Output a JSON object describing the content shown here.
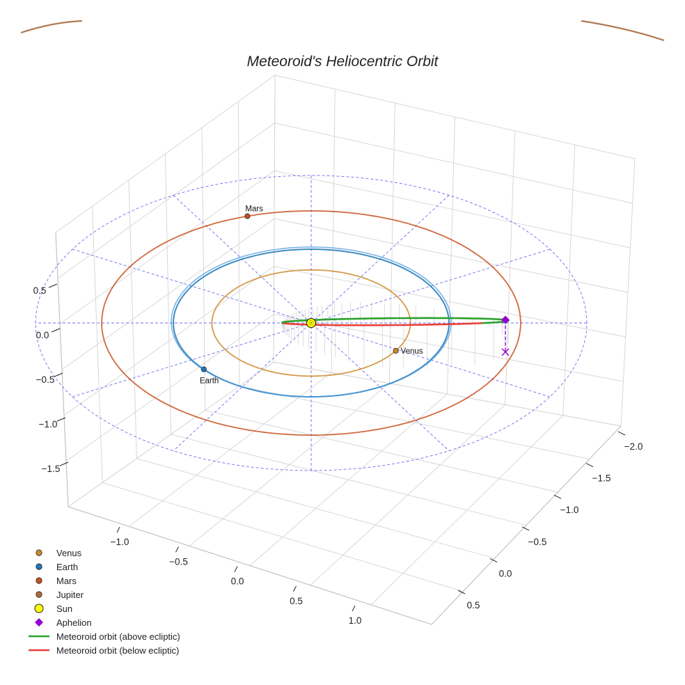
{
  "chart_data": {
    "type": "3d-line",
    "title": "Meteoroid's Heliocentric Orbit",
    "projection": "3d-perspective",
    "axes": {
      "x_ticks": [
        "−1.0",
        "−0.5",
        "0.0",
        "0.5",
        "1.0"
      ],
      "y_ticks": [
        "−2.0",
        "−1.5",
        "−1.0",
        "−0.5",
        "0.0",
        "0.5"
      ],
      "z_ticks": [
        "0.5",
        "0.0",
        "−0.5",
        "−1.0",
        "−1.5"
      ],
      "grid": true,
      "xlabel": "",
      "ylabel": "",
      "zlabel": ""
    },
    "planets": [
      {
        "name": "Venus",
        "orbit_radius_au": 0.72,
        "label": "Venus",
        "color": "#cc8a2e"
      },
      {
        "name": "Earth",
        "orbit_radius_au": 1.0,
        "label": "Earth",
        "color": "#1f77b4"
      },
      {
        "name": "Mars",
        "orbit_radius_au": 1.52,
        "label": "Mars",
        "color": "#c8501e"
      },
      {
        "name": "Jupiter",
        "orbit_radius_au": 5.2,
        "label": "",
        "color": "#b07850"
      }
    ],
    "sun": {
      "name": "Sun",
      "color": "#ffff00"
    },
    "meteoroid_orbit": {
      "above_label": "Meteoroid orbit (above ecliptic)",
      "below_label": "Meteoroid orbit (below ecliptic)",
      "above_color": "#2ca02c",
      "below_color": "#e8403a",
      "perihelion_au": 0.2,
      "aphelion_au": 1.5,
      "inclination_deg": 40
    },
    "aphelion": {
      "name": "Aphelion",
      "color": "#9400d3"
    },
    "ecliptic_grid_radius_au": 2.0,
    "legend": [
      {
        "label": "Venus",
        "marker": "dot",
        "color": "#cc8a2e"
      },
      {
        "label": "Earth",
        "marker": "dot",
        "color": "#1f77b4"
      },
      {
        "label": "Mars",
        "marker": "dot",
        "color": "#c8501e"
      },
      {
        "label": "Jupiter",
        "marker": "dot",
        "color": "#b06a38"
      },
      {
        "label": "Sun",
        "marker": "bigdot",
        "color": "#ffff00"
      },
      {
        "label": "Aphelion",
        "marker": "diamond",
        "color": "#9400d3"
      },
      {
        "label": "Meteoroid orbit (above ecliptic)",
        "marker": "line",
        "color": "#2ca02c"
      },
      {
        "label": "Meteoroid orbit (below ecliptic)",
        "marker": "line",
        "color": "#e8403a"
      }
    ]
  }
}
